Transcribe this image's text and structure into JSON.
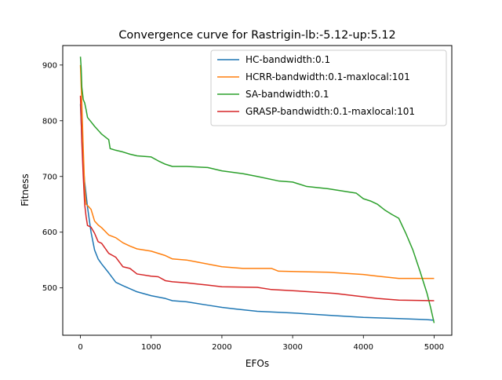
{
  "chart_data": {
    "type": "line",
    "title": "Convergence curve for Rastrigin-lb:-5.12-up:5.12",
    "xlabel": "EFOs",
    "ylabel": "Fitness",
    "xlim": [
      -250,
      5250
    ],
    "ylim": [
      415,
      935
    ],
    "xticks": [
      0,
      1000,
      2000,
      3000,
      4000,
      5000
    ],
    "xtick_labels": [
      "0",
      "1000",
      "2000",
      "3000",
      "4000",
      "5000"
    ],
    "yticks": [
      500,
      600,
      700,
      800,
      900
    ],
    "ytick_labels": [
      "500",
      "600",
      "700",
      "800",
      "900"
    ],
    "grid": false,
    "legend_position": "top-right",
    "series": [
      {
        "name": "HC-bandwidth:0.1",
        "color": "#1f77b4",
        "x": [
          0,
          20,
          40,
          60,
          80,
          100,
          150,
          200,
          250,
          300,
          400,
          500,
          600,
          800,
          1000,
          1200,
          1300,
          1500,
          1800,
          2000,
          2200,
          2500,
          3000,
          3500,
          4000,
          4500,
          4900,
          5000
        ],
        "y": [
          830,
          770,
          720,
          690,
          668,
          645,
          600,
          568,
          552,
          543,
          527,
          510,
          504,
          493,
          486,
          481,
          477,
          475,
          469,
          465,
          462,
          458,
          455,
          451,
          447,
          445,
          443,
          442
        ]
      },
      {
        "name": "HCRR-bandwidth:0.1-maxlocal:101",
        "color": "#ff7f0e",
        "x": [
          0,
          20,
          40,
          60,
          80,
          100,
          150,
          200,
          250,
          300,
          400,
          500,
          600,
          700,
          800,
          1000,
          1200,
          1300,
          1500,
          2000,
          2300,
          2700,
          2800,
          3500,
          4000,
          4200,
          4500,
          5000
        ],
        "y": [
          900,
          830,
          750,
          680,
          650,
          648,
          641,
          620,
          613,
          608,
          595,
          590,
          581,
          575,
          570,
          566,
          558,
          552,
          550,
          538,
          535,
          535,
          530,
          528,
          524,
          521,
          517,
          517
        ]
      },
      {
        "name": "SA-bandwidth:0.1",
        "color": "#2ca02c",
        "x": [
          0,
          10,
          20,
          40,
          60,
          80,
          100,
          150,
          200,
          300,
          400,
          420,
          500,
          600,
          700,
          800,
          1000,
          1100,
          1200,
          1300,
          1500,
          1800,
          2000,
          2300,
          2500,
          2800,
          3000,
          3200,
          3500,
          3800,
          3900,
          4000,
          4100,
          4200,
          4300,
          4400,
          4500,
          4600,
          4700,
          4800,
          4900,
          4950,
          5000
        ],
        "y": [
          915,
          895,
          860,
          838,
          832,
          820,
          806,
          798,
          790,
          776,
          766,
          750,
          747,
          744,
          740,
          737,
          735,
          728,
          722,
          718,
          718,
          716,
          710,
          705,
          700,
          692,
          690,
          682,
          678,
          672,
          670,
          660,
          656,
          650,
          640,
          632,
          625,
          598,
          568,
          530,
          490,
          465,
          437
        ]
      },
      {
        "name": "GRASP-bandwidth:0.1-maxlocal:101",
        "color": "#d62728",
        "x": [
          0,
          20,
          40,
          60,
          80,
          100,
          150,
          200,
          250,
          300,
          400,
          500,
          600,
          700,
          800,
          1000,
          1100,
          1200,
          1300,
          1500,
          1800,
          2000,
          2500,
          2700,
          3000,
          3500,
          3600,
          4000,
          4200,
          4500,
          5000
        ],
        "y": [
          845,
          760,
          700,
          650,
          628,
          612,
          609,
          598,
          583,
          580,
          562,
          555,
          538,
          535,
          525,
          521,
          520,
          513,
          511,
          509,
          505,
          502,
          501,
          497,
          495,
          491,
          490,
          484,
          481,
          478,
          477
        ]
      }
    ]
  }
}
